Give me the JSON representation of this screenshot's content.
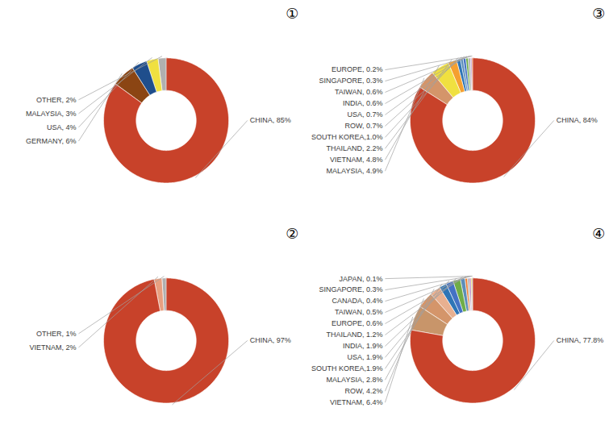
{
  "chart_data": [
    {
      "type": "pie",
      "title": "①",
      "categories": [
        "CHINA, 85%",
        "GERMANY, 6%",
        "USA, 4%",
        "MALAYSIA, 3%",
        "OTHER, 2%"
      ],
      "values": [
        85,
        6,
        4,
        3,
        2
      ],
      "colors": [
        "#C8422A",
        "#8B4513",
        "#1F4E8C",
        "#F0E040",
        "#B0B0B0"
      ]
    },
    {
      "type": "pie",
      "title": "②",
      "categories": [
        "CHINA, 97%",
        "VIETNAM, 2%",
        "OTHER, 1%"
      ],
      "values": [
        97,
        2,
        1
      ],
      "colors": [
        "#C8422A",
        "#E8A080",
        "#B0B0B0"
      ]
    },
    {
      "type": "pie",
      "title": "③",
      "categories": [
        "CHINA, 84%",
        "MALAYSIA, 4.9%",
        "VIETNAM, 4.8%",
        "THAILAND, 2.2%",
        "SOUTH KOREA,1.0%",
        "ROW, 0.7%",
        "USA, 0.7%",
        "INDIA, 0.6%",
        "TAIWAN, 0.6%",
        "SINGAPORE, 0.3%",
        "EUROPE, 0.2%"
      ],
      "values": [
        84,
        4.9,
        4.8,
        2.2,
        1.0,
        0.7,
        0.7,
        0.6,
        0.6,
        0.3,
        0.2
      ],
      "colors": [
        "#C8422A",
        "#D4956A",
        "#F0E040",
        "#F5A030",
        "#2E75B6",
        "#5B8DB8",
        "#4472C4",
        "#70AD47",
        "#B0B0B0",
        "#9B59B6",
        "#ED7D31"
      ]
    },
    {
      "type": "pie",
      "title": "④",
      "categories": [
        "CHINA, 77.8%",
        "VIETNAM, 6.4%",
        "ROW, 4.2%",
        "MALAYSIA, 2.8%",
        "SOUTH KOREA,1.9%",
        "USA, 1.9%",
        "INDIA, 1.9%",
        "THAILAND, 1.2%",
        "EUROPE, 0.6%",
        "TAIWAN, 0.5%",
        "CANADA, 0.4%",
        "SINGAPORE, 0.3%",
        "JAPAN, 0.1%"
      ],
      "values": [
        77.8,
        6.4,
        4.2,
        2.8,
        1.9,
        1.9,
        1.9,
        1.2,
        0.6,
        0.5,
        0.4,
        0.3,
        0.1
      ],
      "colors": [
        "#C8422A",
        "#C8956A",
        "#D4956A",
        "#E8B090",
        "#2E75B6",
        "#4472C4",
        "#70AD47",
        "#5B8DB8",
        "#ED7D31",
        "#B0B0B0",
        "#9B59B6",
        "#F0E040",
        "#333333"
      ]
    }
  ]
}
